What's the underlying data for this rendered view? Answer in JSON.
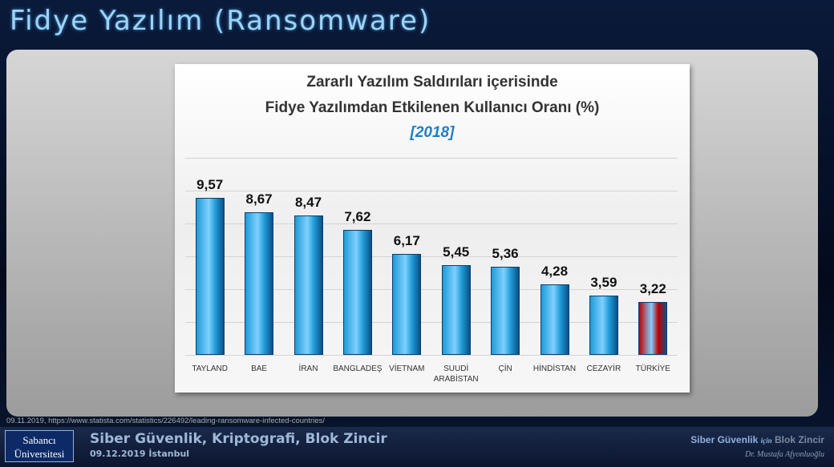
{
  "slide": {
    "title": "Fidye Yazılım (Ransomware)",
    "source": "09.11.2019, https://www.statista.com/statistics/226492/leading-ransomware-infected-countries/",
    "logo": [
      "Sabancı",
      "Üniversitesi"
    ],
    "footer_title": "Siber Güvenlik, Kriptografi, Blok Zincir",
    "footer_date": "09.12.2019 İstanbul",
    "footer_right": [
      "Siber Güvenlik",
      "için",
      "Blok Zincir"
    ],
    "author": "Dr. Mustafa Afyonluoğlu"
  },
  "chart_data": {
    "type": "bar",
    "title": [
      "Zararlı Yazılım Saldırıları içerisinde",
      "Fidye Yazılımdan Etkilenen Kullanıcı Oranı (%)"
    ],
    "subtitle": "[2018]",
    "categories": [
      "TAYLAND",
      "BAE",
      "İRAN",
      "BANGLADEŞ",
      "VİETNAM",
      "SUUDİ ARABİSTAN",
      "ÇİN",
      "HİNDİSTAN",
      "CEZAYİR",
      "TÜRKİYE"
    ],
    "values": [
      9.57,
      8.67,
      8.47,
      7.62,
      6.17,
      5.45,
      5.36,
      4.28,
      3.59,
      3.22
    ],
    "value_labels": [
      "9,57",
      "8,67",
      "8,47",
      "7,62",
      "6,17",
      "5,45",
      "5,36",
      "4,28",
      "3,59",
      "3,22"
    ],
    "colors": [
      "#1f9bd7",
      "#1f9bd7",
      "#1f9bd7",
      "#1f9bd7",
      "#1f9bd7",
      "#1f9bd7",
      "#1f9bd7",
      "#1f9bd7",
      "#1f9bd7",
      "#c00000"
    ],
    "ylim": [
      0,
      12
    ],
    "yticks": [
      0,
      2,
      4,
      6,
      8,
      10,
      12
    ],
    "grid": true
  }
}
